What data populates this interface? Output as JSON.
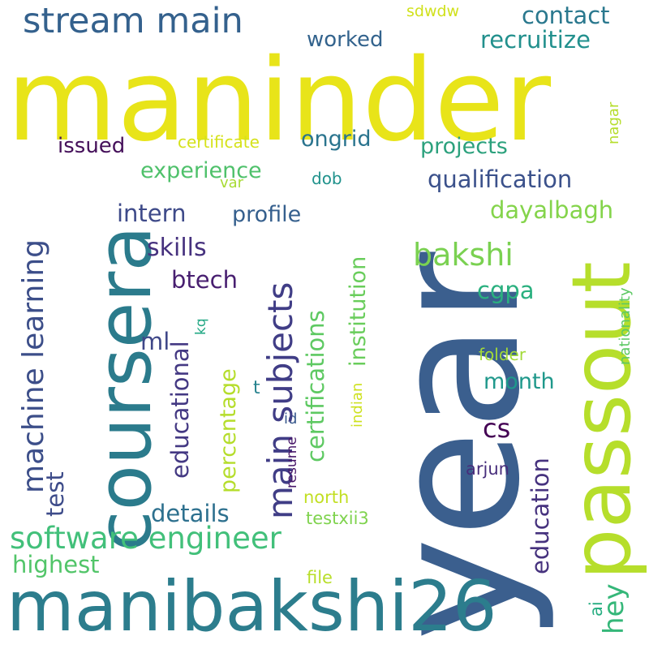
{
  "words": [
    {
      "text": "maninder",
      "color": "#e8e419"
    },
    {
      "text": "year",
      "color": "#3b5f8e"
    },
    {
      "text": "coursera",
      "color": "#2b7b8c"
    },
    {
      "text": "passout",
      "color": "#b6de2b"
    },
    {
      "text": "manibakshi26",
      "color": "#2c7d8d"
    },
    {
      "text": "stream main",
      "color": "#34618d"
    },
    {
      "text": "software engineer",
      "color": "#42c07a"
    },
    {
      "text": "machine learning",
      "color": "#3c4e89"
    },
    {
      "text": "main subjects",
      "color": "#403d86"
    },
    {
      "text": "contact",
      "color": "#2a788e"
    },
    {
      "text": "recruitize",
      "color": "#22908d"
    },
    {
      "text": "worked",
      "color": "#33638d"
    },
    {
      "text": "sdwdw",
      "color": "#d0e11c"
    },
    {
      "text": "ongrid",
      "color": "#2a748e"
    },
    {
      "text": "projects",
      "color": "#2ca17d"
    },
    {
      "text": "issued",
      "color": "#45105a"
    },
    {
      "text": "certificate",
      "color": "#d5e21a"
    },
    {
      "text": "experience",
      "color": "#4fc16b"
    },
    {
      "text": "qualification",
      "color": "#3b518b"
    },
    {
      "text": "dob",
      "color": "#20928c"
    },
    {
      "text": "nagar",
      "color": "#b5dd2b"
    },
    {
      "text": "intern",
      "color": "#3e4a89"
    },
    {
      "text": "var",
      "color": "#a7db33"
    },
    {
      "text": "profile",
      "color": "#355f8d"
    },
    {
      "text": "dayalbagh",
      "color": "#84d44b"
    },
    {
      "text": "bakshi",
      "color": "#7ad151"
    },
    {
      "text": "skills",
      "color": "#46317e"
    },
    {
      "text": "btech",
      "color": "#481f70"
    },
    {
      "text": "institution",
      "color": "#69cd5b"
    },
    {
      "text": "certifications",
      "color": "#5ec962"
    },
    {
      "text": "cgpa",
      "color": "#2ab07f"
    },
    {
      "text": "educational",
      "color": "#443983"
    },
    {
      "text": "ml",
      "color": "#3f4788"
    },
    {
      "text": "kq",
      "color": "#22a884"
    },
    {
      "text": "percentage",
      "color": "#b5dd2b"
    },
    {
      "text": "month",
      "color": "#1f988b"
    },
    {
      "text": "indian",
      "color": "#cde11d"
    },
    {
      "text": "folder",
      "color": "#a2da37"
    },
    {
      "text": "nationality",
      "color": "#5cc863"
    },
    {
      "text": "t",
      "color": "#26828e"
    },
    {
      "text": "cs",
      "color": "#440154"
    },
    {
      "text": "id",
      "color": "#38588c"
    },
    {
      "text": "hey",
      "color": "#35b779"
    },
    {
      "text": "test",
      "color": "#3e4c8a"
    },
    {
      "text": "resume",
      "color": "#481769"
    },
    {
      "text": "arjun",
      "color": "#472d7b"
    },
    {
      "text": "education",
      "color": "#46327e"
    },
    {
      "text": "details",
      "color": "#2d708e"
    },
    {
      "text": "north",
      "color": "#c2df23"
    },
    {
      "text": "testxii3",
      "color": "#7fd34e"
    },
    {
      "text": "highest",
      "color": "#52c569"
    },
    {
      "text": "file",
      "color": "#b8de29"
    },
    {
      "text": "ai",
      "color": "#26ad81"
    }
  ]
}
